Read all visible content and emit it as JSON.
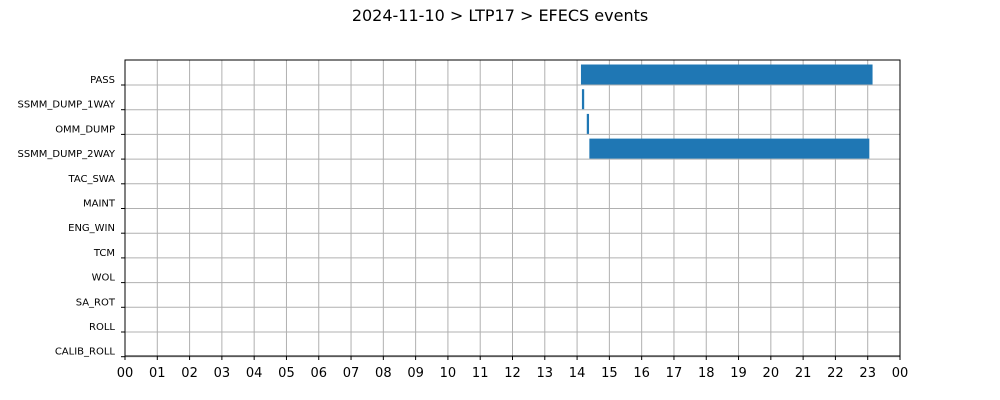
{
  "chart_data": {
    "type": "bar",
    "orientation": "horizontal-timeline",
    "title": "2024-11-10 > LTP17 > EFECS events",
    "xlabel": "",
    "ylabel": "",
    "x_ticks": [
      "00",
      "01",
      "02",
      "03",
      "04",
      "05",
      "06",
      "07",
      "08",
      "09",
      "10",
      "11",
      "12",
      "13",
      "14",
      "15",
      "16",
      "17",
      "18",
      "19",
      "20",
      "21",
      "22",
      "23",
      "00"
    ],
    "xlim": [
      0,
      24
    ],
    "grid": true,
    "bar_color": "#1f77b4",
    "categories": [
      "PASS",
      "SSMM_DUMP_1WAY",
      "OMM_DUMP",
      "SSMM_DUMP_2WAY",
      "TAC_SWA",
      "MAINT",
      "ENG_WIN",
      "TCM",
      "WOL",
      "SA_ROT",
      "ROLL",
      "CALIB_ROLL"
    ],
    "events": [
      {
        "category": "PASS",
        "start": 14.12,
        "end": 23.15
      },
      {
        "category": "SSMM_DUMP_1WAY",
        "start": 14.15,
        "end": 14.22
      },
      {
        "category": "OMM_DUMP",
        "start": 14.3,
        "end": 14.37
      },
      {
        "category": "SSMM_DUMP_2WAY",
        "start": 14.38,
        "end": 23.05
      }
    ]
  }
}
